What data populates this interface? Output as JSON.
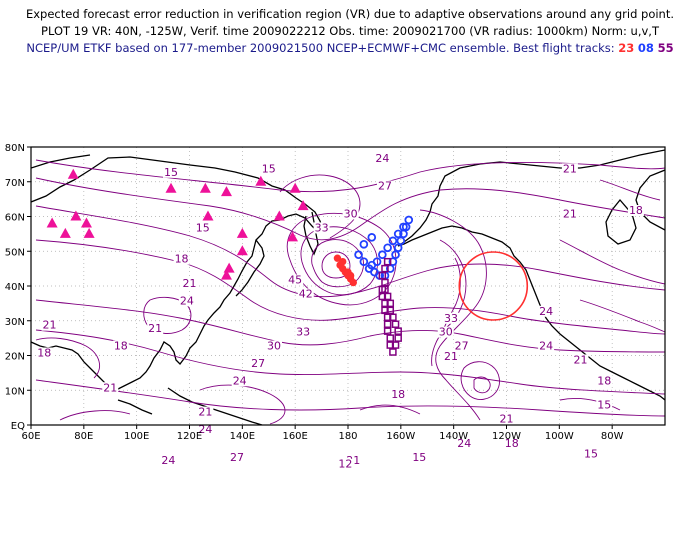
{
  "header": {
    "line1": "Expected forecast error reduction in verification region (VR) due to adaptive observations around any grid point.",
    "line2": "PLOT 19 VR: 40N, -125W, Verif. time 2009022212 Obs. time: 2009021700 (VR radius: 1000km) Norm: u,v,T",
    "line3_prefix": "NCEP/UM ETKF based on 177-member 2009021500 NCEP+ECMWF+CMC ensemble. Best flight tracks:",
    "track1": "23",
    "track2": "08",
    "track3": "55"
  },
  "axes": {
    "x_ticks": [
      "60E",
      "80E",
      "100E",
      "120E",
      "140E",
      "160E",
      "180",
      "160W",
      "140W",
      "120W",
      "100W",
      "80W"
    ],
    "y_ticks": [
      "EQ",
      "10N",
      "20N",
      "30N",
      "40N",
      "50N",
      "60N",
      "70N",
      "80N"
    ]
  },
  "contour_labels": [
    {
      "text": "15",
      "lon": 113,
      "lat": 72
    },
    {
      "text": "15",
      "lon": 150,
      "lat": 73
    },
    {
      "text": "24",
      "lon": 193,
      "lat": 76
    },
    {
      "text": "27",
      "lon": 194,
      "lat": 68
    },
    {
      "text": "21",
      "lon": 264,
      "lat": 73
    },
    {
      "text": "18",
      "lon": 289,
      "lat": 61
    },
    {
      "text": "21",
      "lon": 264,
      "lat": 60
    },
    {
      "text": "30",
      "lon": 181,
      "lat": 60
    },
    {
      "text": "33",
      "lon": 170,
      "lat": 56
    },
    {
      "text": "15",
      "lon": 125,
      "lat": 56
    },
    {
      "text": "18",
      "lon": 117,
      "lat": 47
    },
    {
      "text": "21",
      "lon": 120,
      "lat": 40
    },
    {
      "text": "24",
      "lon": 119,
      "lat": 35
    },
    {
      "text": "45",
      "lon": 160,
      "lat": 41
    },
    {
      "text": "42",
      "lon": 164,
      "lat": 37
    },
    {
      "text": "33",
      "lon": 163,
      "lat": 26
    },
    {
      "text": "30",
      "lon": 152,
      "lat": 22
    },
    {
      "text": "27",
      "lon": 146,
      "lat": 17
    },
    {
      "text": "24",
      "lon": 139,
      "lat": 12
    },
    {
      "text": "21",
      "lon": 67,
      "lat": 28
    },
    {
      "text": "21",
      "lon": 107,
      "lat": 27
    },
    {
      "text": "18",
      "lon": 94,
      "lat": 22
    },
    {
      "text": "18",
      "lon": 65,
      "lat": 20
    },
    {
      "text": "21",
      "lon": 90,
      "lat": 10
    },
    {
      "text": "21",
      "lon": 126,
      "lat": 3
    },
    {
      "text": "24",
      "lon": 126,
      "lat": -2
    },
    {
      "text": "27",
      "lon": 138,
      "lat": -10
    },
    {
      "text": "24",
      "lon": 112,
      "lat": -11
    },
    {
      "text": "21",
      "lon": 182,
      "lat": -11
    },
    {
      "text": "33",
      "lon": 219,
      "lat": 30
    },
    {
      "text": "30",
      "lon": 217,
      "lat": 26
    },
    {
      "text": "27",
      "lon": 223,
      "lat": 22
    },
    {
      "text": "24",
      "lon": 255,
      "lat": 32
    },
    {
      "text": "24",
      "lon": 255,
      "lat": 22
    },
    {
      "text": "21",
      "lon": 268,
      "lat": 18
    },
    {
      "text": "18",
      "lon": 277,
      "lat": 12
    },
    {
      "text": "15",
      "lon": 277,
      "lat": 5
    },
    {
      "text": "18",
      "lon": 199,
      "lat": 8
    },
    {
      "text": "21",
      "lon": 240,
      "lat": 1
    },
    {
      "text": "24",
      "lon": 224,
      "lat": -6
    },
    {
      "text": "18",
      "lon": 242,
      "lat": -6
    },
    {
      "text": "15",
      "lon": 272,
      "lat": -9
    },
    {
      "text": "15",
      "lon": 207,
      "lat": -10
    },
    {
      "text": "21",
      "lon": 219,
      "lat": 19
    },
    {
      "text": "12",
      "lon": 179,
      "lat": -12
    }
  ],
  "vr_circle": {
    "lon": 235,
    "lat": 40
  },
  "triangles": [
    [
      76,
      72
    ],
    [
      68,
      58
    ],
    [
      73,
      55
    ],
    [
      77,
      60
    ],
    [
      81,
      58
    ],
    [
      82,
      55
    ],
    [
      113,
      68
    ],
    [
      126,
      68
    ],
    [
      134,
      67
    ],
    [
      127,
      60
    ],
    [
      147,
      70
    ],
    [
      160,
      68
    ],
    [
      154,
      60
    ],
    [
      159,
      54
    ],
    [
      163,
      63
    ],
    [
      140,
      55
    ],
    [
      140,
      50
    ],
    [
      135,
      45
    ],
    [
      134,
      43
    ]
  ],
  "track_23": [
    [
      176,
      48
    ],
    [
      177,
      46
    ],
    [
      178,
      45
    ],
    [
      179,
      44
    ],
    [
      180,
      43
    ],
    [
      181,
      42
    ],
    [
      182,
      41
    ],
    [
      181,
      43
    ],
    [
      180,
      44
    ],
    [
      178,
      47
    ]
  ],
  "track_08": [
    [
      188,
      45
    ],
    [
      190,
      44
    ],
    [
      192,
      43
    ],
    [
      194,
      43
    ],
    [
      196,
      45
    ],
    [
      197,
      47
    ],
    [
      198,
      49
    ],
    [
      199,
      51
    ],
    [
      200,
      53
    ],
    [
      201,
      55
    ],
    [
      202,
      57
    ],
    [
      203,
      59
    ],
    [
      201,
      57
    ],
    [
      199,
      55
    ],
    [
      197,
      53
    ],
    [
      195,
      51
    ],
    [
      193,
      49
    ],
    [
      191,
      47
    ],
    [
      189,
      46
    ],
    [
      186,
      47
    ],
    [
      184,
      49
    ],
    [
      186,
      52
    ],
    [
      189,
      54
    ]
  ],
  "track_55": [
    [
      193,
      39
    ],
    [
      193,
      37
    ],
    [
      194,
      35
    ],
    [
      194,
      33
    ],
    [
      195,
      31
    ],
    [
      195,
      29
    ],
    [
      195,
      27
    ],
    [
      196,
      25
    ],
    [
      196,
      23
    ],
    [
      197,
      21
    ],
    [
      198,
      23
    ],
    [
      199,
      25
    ],
    [
      199,
      27
    ],
    [
      198,
      29
    ],
    [
      197,
      31
    ],
    [
      196,
      33
    ],
    [
      196,
      35
    ],
    [
      195,
      37
    ],
    [
      194,
      39
    ],
    [
      194,
      41
    ],
    [
      193,
      43
    ],
    [
      194,
      45
    ],
    [
      195,
      47
    ]
  ],
  "colors": {
    "contour": "#800080",
    "track23": "#ff3030",
    "track08": "#2040ff",
    "track55": "#800080",
    "triangle": "#ee1199",
    "vr": "#ff3030"
  }
}
